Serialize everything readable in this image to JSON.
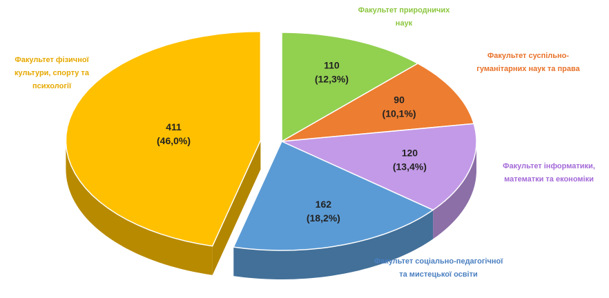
{
  "chart_data": {
    "type": "pie3d",
    "categories": [
      "Факультет природничих наук",
      "Факультет суспільно-гуманітарних наук та права",
      "Факультет інформатики, математки та економіки",
      "Факультет соціально-педагогічної та мистецької освіти",
      "Факультет фізичної культури, спорту та психології"
    ],
    "values": [
      110,
      90,
      120,
      162,
      411
    ],
    "percent_labels": [
      "(12,3%)",
      "(10,1%)",
      "(13,4%)",
      "(18,2%)",
      "(46,0%)"
    ],
    "colors": [
      "#92d050",
      "#ed7d31",
      "#c39ae8",
      "#5b9bd5",
      "#ffc000"
    ],
    "label_colors": [
      "#8cc63f",
      "#e8722a",
      "#a46ad8",
      "#4a7fc0",
      "#e6a800"
    ],
    "exploded": [
      false,
      false,
      false,
      false,
      true
    ]
  }
}
